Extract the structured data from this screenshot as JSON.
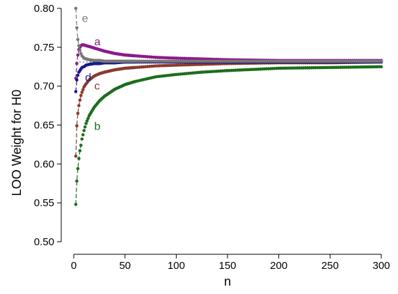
{
  "chart_data": {
    "type": "scatter",
    "title": "",
    "xlabel": "n",
    "ylabel": "LOO Weight for H0",
    "xlim": [
      0,
      300
    ],
    "ylim": [
      0.5,
      0.8
    ],
    "xticks": [
      0,
      50,
      100,
      150,
      200,
      250,
      300
    ],
    "yticks": [
      0.5,
      0.55,
      0.6,
      0.65,
      0.7,
      0.75,
      0.8
    ],
    "xtick_labels": [
      "0",
      "50",
      "100",
      "150",
      "200",
      "250",
      "300"
    ],
    "ytick_labels": [
      "0.50",
      "0.55",
      "0.60",
      "0.65",
      "0.70",
      "0.75",
      "0.80"
    ],
    "grid": false,
    "reference_line": {
      "y": 0.731,
      "style": "dotted",
      "color": "#555555"
    },
    "series": [
      {
        "name": "a",
        "color": "#8b1a8b",
        "label_at": [
          20,
          0.757
        ],
        "x": [
          2,
          3,
          4,
          5,
          6,
          7,
          8,
          10,
          12,
          15,
          20,
          25,
          30,
          40,
          50,
          60,
          80,
          100,
          125,
          150,
          200,
          250,
          300
        ],
        "values": [
          0.71,
          0.729,
          0.74,
          0.747,
          0.75,
          0.752,
          0.753,
          0.753,
          0.752,
          0.751,
          0.749,
          0.747,
          0.745,
          0.742,
          0.74,
          0.739,
          0.737,
          0.736,
          0.735,
          0.734,
          0.733,
          0.733,
          0.733
        ]
      },
      {
        "name": "b",
        "color": "#1b6e1b",
        "label_at": [
          20,
          0.648
        ],
        "x": [
          2,
          3,
          4,
          5,
          6,
          7,
          8,
          10,
          12,
          15,
          20,
          25,
          30,
          40,
          50,
          60,
          80,
          100,
          125,
          150,
          200,
          250,
          300
        ],
        "values": [
          0.548,
          0.578,
          0.594,
          0.607,
          0.617,
          0.624,
          0.632,
          0.643,
          0.652,
          0.662,
          0.673,
          0.681,
          0.687,
          0.696,
          0.702,
          0.706,
          0.712,
          0.715,
          0.718,
          0.72,
          0.723,
          0.724,
          0.725
        ]
      },
      {
        "name": "c",
        "color": "#8b3a2e",
        "label_at": [
          20,
          0.7
        ],
        "x": [
          2,
          3,
          4,
          5,
          6,
          7,
          8,
          10,
          12,
          15,
          20,
          25,
          30,
          40,
          50,
          60,
          80,
          100,
          125,
          150,
          200,
          250,
          300
        ],
        "values": [
          0.61,
          0.649,
          0.665,
          0.675,
          0.682,
          0.688,
          0.692,
          0.699,
          0.703,
          0.708,
          0.713,
          0.716,
          0.718,
          0.721,
          0.723,
          0.724,
          0.726,
          0.727,
          0.728,
          0.729,
          0.73,
          0.73,
          0.731
        ]
      },
      {
        "name": "d",
        "color": "#1a1a8b",
        "label_at": [
          11,
          0.711
        ],
        "x": [
          2,
          3,
          4,
          5,
          6,
          7,
          8,
          10,
          12,
          15,
          20,
          25,
          30,
          40,
          50,
          60,
          80,
          100,
          125,
          150,
          200,
          250,
          300
        ],
        "values": [
          0.693,
          0.708,
          0.714,
          0.718,
          0.72,
          0.722,
          0.724,
          0.725,
          0.727,
          0.728,
          0.729,
          0.729,
          0.73,
          0.73,
          0.731,
          0.731,
          0.731,
          0.731,
          0.731,
          0.731,
          0.731,
          0.731,
          0.731
        ]
      },
      {
        "name": "e",
        "color": "#777777",
        "label_at": [
          8,
          0.787
        ],
        "x": [
          2,
          3,
          4,
          5,
          6,
          7,
          8,
          10,
          12,
          15,
          20,
          25,
          30,
          40,
          50,
          60,
          80,
          100,
          125,
          150,
          200,
          250,
          300
        ],
        "values": [
          0.8,
          0.775,
          0.76,
          0.752,
          0.746,
          0.742,
          0.739,
          0.736,
          0.735,
          0.734,
          0.733,
          0.733,
          0.732,
          0.732,
          0.732,
          0.732,
          0.732,
          0.732,
          0.732,
          0.732,
          0.732,
          0.732,
          0.732
        ]
      }
    ]
  }
}
